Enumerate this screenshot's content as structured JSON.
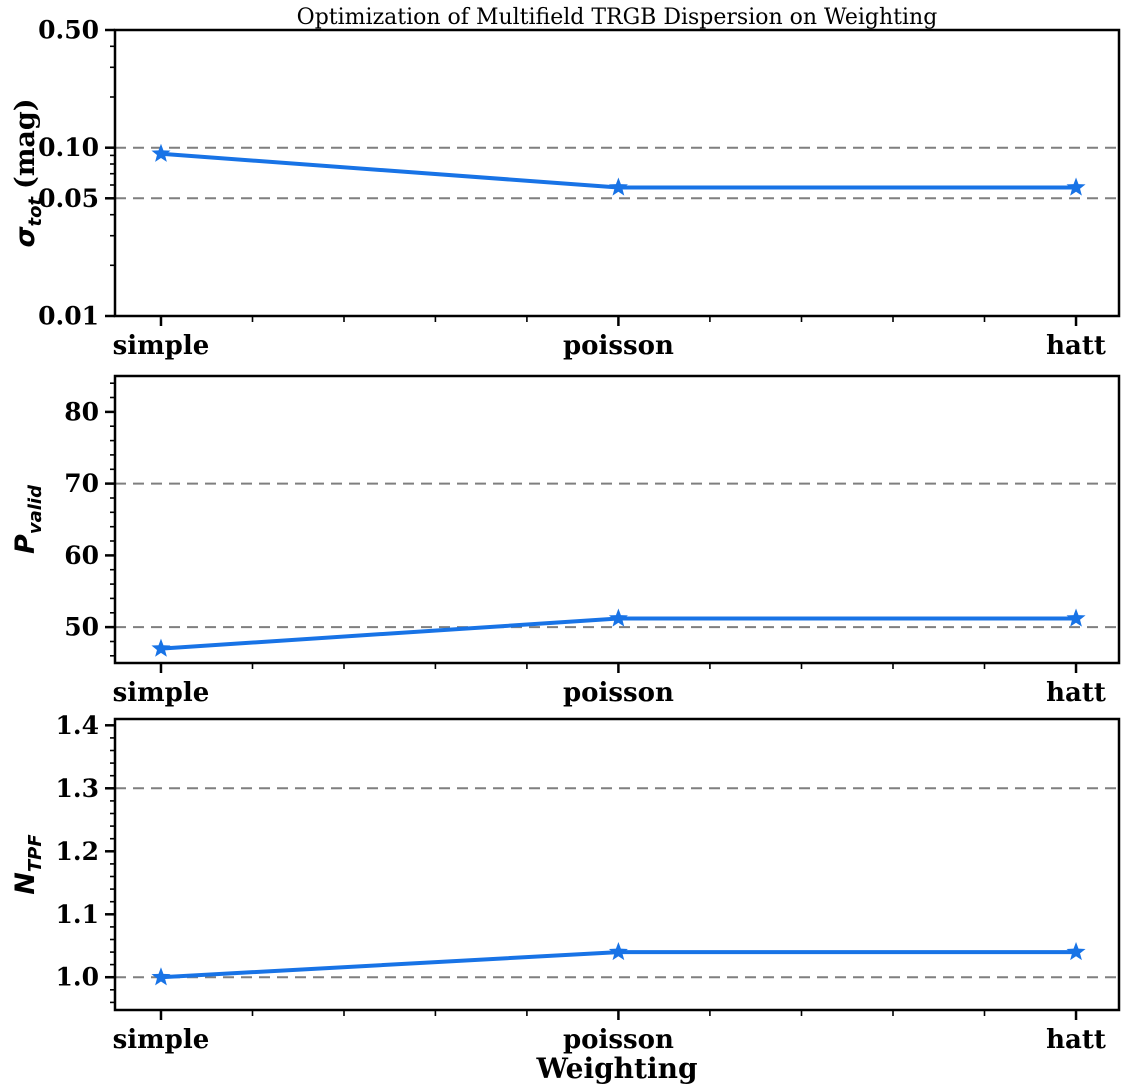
{
  "figure": {
    "background": "#ffffff",
    "axis_color": "#000000",
    "grid_color": "#7f7f7f",
    "line_color": "#1873e6",
    "marker": "star"
  },
  "chart_data": {
    "type": "line",
    "title": "Optimization of Multifield TRGB Dispersion on Weighting",
    "xlabel": "Weighting",
    "categories": [
      "simple",
      "poisson",
      "hatt"
    ],
    "legend": "none",
    "panels": [
      {
        "name": "sigma-tot",
        "ylabel": {
          "symbol": "σ",
          "subscript": "tot",
          "suffix": "(mag)"
        },
        "yscale": "log",
        "ylim": [
          0.01,
          0.5
        ],
        "yticks": [
          0.01,
          0.05,
          0.1,
          0.5
        ],
        "ytick_labels": [
          "0.01",
          "0.05",
          "0.10",
          "0.50"
        ],
        "gridlines": [
          0.05,
          0.1
        ],
        "grid_style": "dashed",
        "values": [
          0.092,
          0.058,
          0.058
        ]
      },
      {
        "name": "p-valid",
        "ylabel": {
          "symbol": "P",
          "subscript": "valid",
          "suffix": ""
        },
        "yscale": "linear",
        "ylim": [
          45,
          85
        ],
        "yticks": [
          50,
          60,
          70,
          80
        ],
        "ytick_labels": [
          "50",
          "60",
          "70",
          "80"
        ],
        "yminor_step": 2,
        "gridlines": [
          50,
          70
        ],
        "grid_style": "dashed",
        "values": [
          47,
          51.2,
          51.2
        ]
      },
      {
        "name": "n-tpf",
        "ylabel": {
          "symbol": "N",
          "subscript": "TPF",
          "suffix": ""
        },
        "yscale": "linear",
        "ylim": [
          0.948,
          1.41
        ],
        "yticks": [
          1.0,
          1.1,
          1.2,
          1.3,
          1.4
        ],
        "ytick_labels": [
          "1.0",
          "1.1",
          "1.2",
          "1.3",
          "1.4"
        ],
        "yminor_step": 0.02,
        "gridlines": [
          1.0,
          1.3
        ],
        "grid_style": "dashed",
        "values": [
          1.0,
          1.04,
          1.04
        ]
      }
    ]
  }
}
